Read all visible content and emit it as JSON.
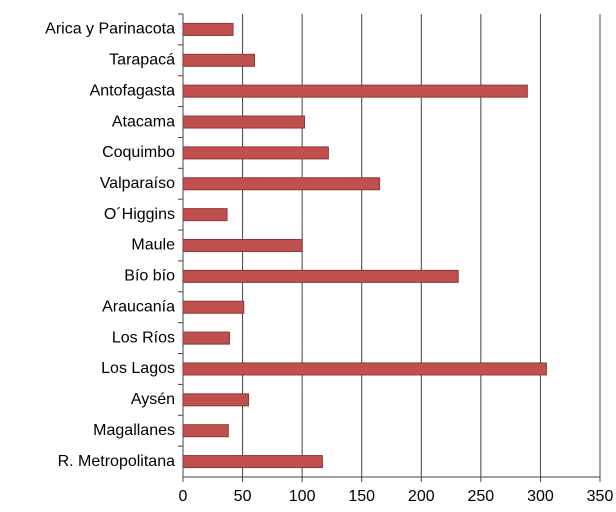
{
  "chart_data": {
    "type": "bar",
    "orientation": "horizontal",
    "categories": [
      "Arica y Parinacota",
      "Tarapacá",
      "Antofagasta",
      "Atacama",
      "Coquimbo",
      "Valparaíso",
      "O´Higgins",
      "Maule",
      "Bío bío",
      "Araucanía",
      "Los Ríos",
      "Los Lagos",
      "Aysén",
      "Magallanes",
      "R. Metropolitana"
    ],
    "values": [
      42,
      60,
      289,
      102,
      122,
      165,
      37,
      100,
      231,
      51,
      39,
      305,
      55,
      38,
      117
    ],
    "color": "#c0504d",
    "xlim": [
      0,
      350
    ],
    "xticks": [
      0,
      50,
      100,
      150,
      200,
      250,
      300,
      350
    ],
    "grid": true
  }
}
